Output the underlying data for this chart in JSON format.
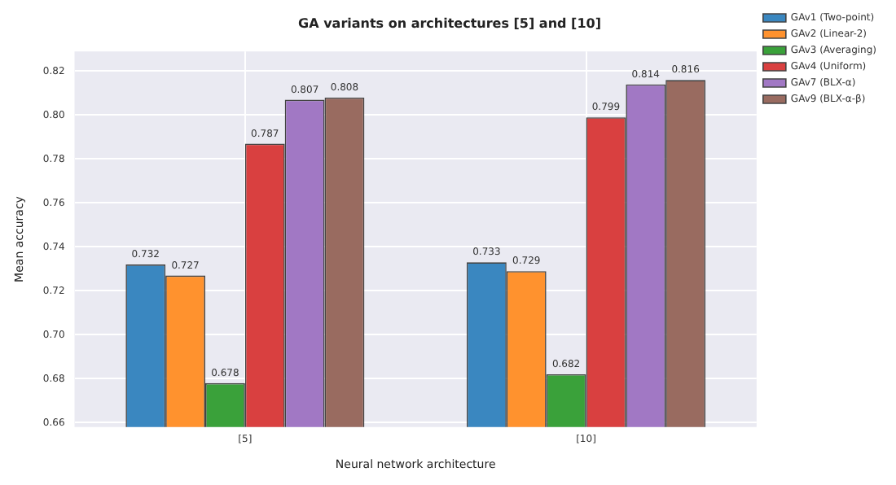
{
  "chart_data": {
    "type": "bar",
    "title": "GA variants on architectures [5] and [10]",
    "xlabel": "Neural network architecture",
    "ylabel": "Mean accuracy",
    "categories": [
      "[5]",
      "[10]"
    ],
    "series": [
      {
        "name": "GAv1 (Two-point)",
        "color": "#3a87c0",
        "values": [
          0.732,
          0.733
        ]
      },
      {
        "name": "GAv2 (Linear-2)",
        "color": "#ff922e",
        "values": [
          0.727,
          0.729
        ]
      },
      {
        "name": "GAv3 (Averaging)",
        "color": "#3aa13a",
        "values": [
          0.678,
          0.682
        ]
      },
      {
        "name": "GAv4 (Uniform)",
        "color": "#d94040",
        "values": [
          0.787,
          0.799
        ]
      },
      {
        "name": "GAv7 (BLX-α)",
        "color": "#a178c4",
        "values": [
          0.807,
          0.814
        ]
      },
      {
        "name": "GAv9 (BLX-α-β)",
        "color": "#996b60",
        "values": [
          0.808,
          0.816
        ]
      }
    ],
    "ylim": [
      0.658,
      0.829
    ],
    "yticks": [
      {
        "value": 0.66,
        "label": "0.66"
      },
      {
        "value": 0.68,
        "label": "0.68"
      },
      {
        "value": 0.7,
        "label": "0.70"
      },
      {
        "value": 0.72,
        "label": "0.72"
      },
      {
        "value": 0.74,
        "label": "0.74"
      },
      {
        "value": 0.76,
        "label": "0.76"
      },
      {
        "value": 0.78,
        "label": "0.78"
      },
      {
        "value": 0.8,
        "label": "0.80"
      },
      {
        "value": 0.82,
        "label": "0.82"
      }
    ],
    "data_labels": true,
    "grid": true,
    "legend": "top right"
  }
}
